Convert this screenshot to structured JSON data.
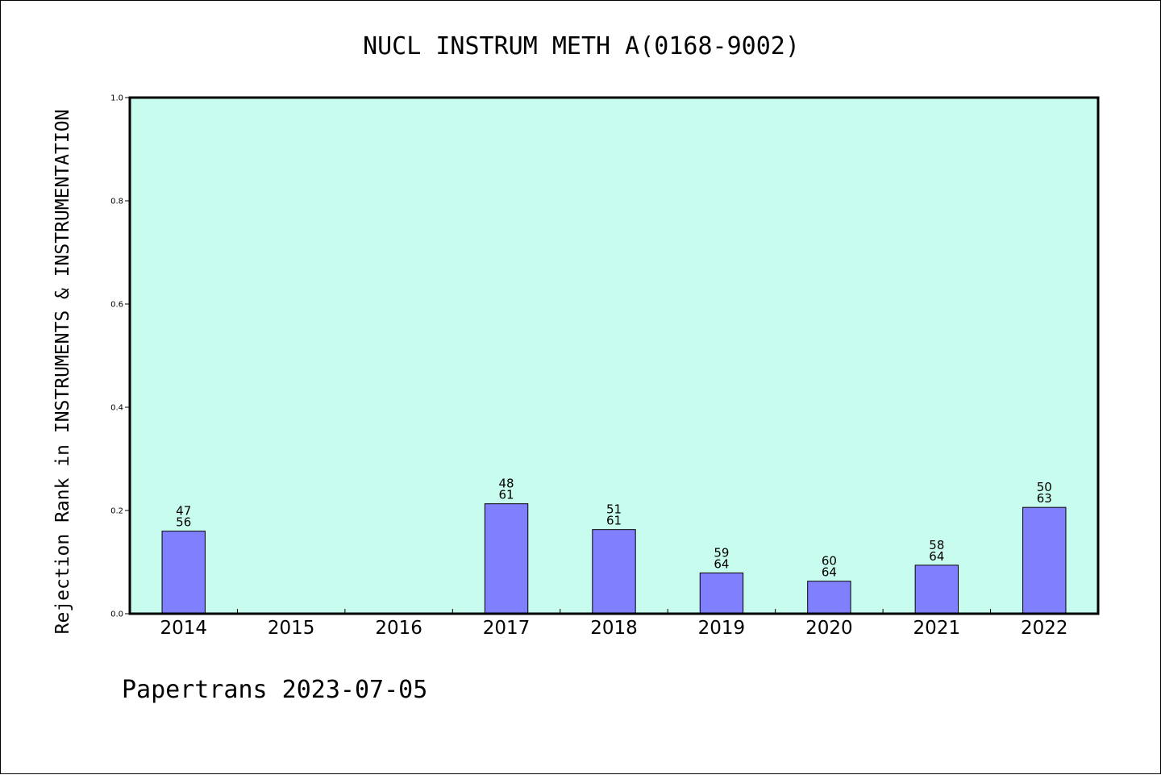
{
  "chart_data": {
    "type": "bar",
    "title": "NUCL INSTRUM METH A(0168-9002)",
    "ylabel": "Rejection Rank in INSTRUMENTS & INSTRUMENTATION",
    "xlabel": "",
    "ylim": [
      0,
      1.0
    ],
    "yticks": [
      "0.0",
      "0.2",
      "0.4",
      "0.6",
      "0.8",
      "1.0"
    ],
    "categories": [
      "2014",
      "2015",
      "2016",
      "2017",
      "2018",
      "2019",
      "2020",
      "2021",
      "2022"
    ],
    "values": [
      0.16,
      null,
      null,
      0.213,
      0.163,
      0.079,
      0.063,
      0.094,
      0.206
    ],
    "rank_labels": [
      "47",
      "",
      "",
      "48",
      "51",
      "59",
      "60",
      "58",
      "50"
    ],
    "total_labels": [
      "56",
      "",
      "",
      "61",
      "61",
      "64",
      "64",
      "64",
      "63"
    ],
    "grid": false,
    "colors": {
      "plot_bg": "#c8fcee",
      "bar": "#8080ff",
      "axis": "#000000"
    }
  },
  "footer": "Papertrans 2023-07-05"
}
